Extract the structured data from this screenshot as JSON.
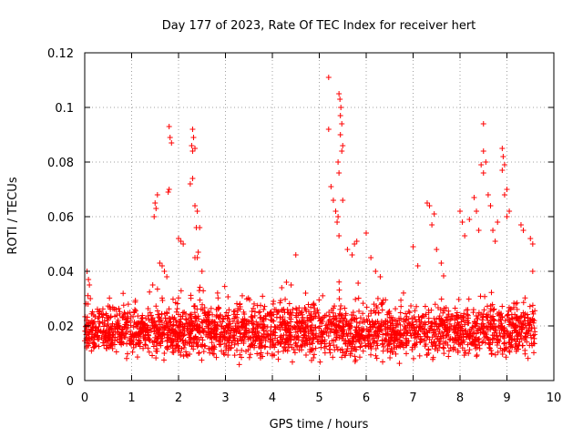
{
  "chart_data": {
    "type": "scatter",
    "title": "Day 177 of 2023, Rate Of TEC Index for receiver hert",
    "xlabel": "GPS time / hours",
    "ylabel": "ROTI / TECUs",
    "xlim": [
      0,
      10
    ],
    "ylim": [
      0,
      0.12
    ],
    "xticks": [
      "0",
      "1",
      "2",
      "3",
      "4",
      "5",
      "6",
      "7",
      "8",
      "9",
      "10"
    ],
    "yticks": [
      "0",
      "0.02",
      "0.04",
      "0.06",
      "0.08",
      "0.1",
      "0.12"
    ],
    "grid": true,
    "marker": "+",
    "color": "#ff0000",
    "series": [
      {
        "name": "ROTI",
        "x_range": [
          0,
          9.6
        ],
        "typical_range": [
          0.005,
          0.025
        ],
        "points": [
          [
            0.05,
            0.04
          ],
          [
            0.08,
            0.037
          ],
          [
            0.1,
            0.035
          ],
          [
            0.12,
            0.03
          ],
          [
            0.07,
            0.028
          ],
          [
            1.5,
            0.065
          ],
          [
            1.52,
            0.063
          ],
          [
            1.48,
            0.06
          ],
          [
            1.55,
            0.068
          ],
          [
            1.6,
            0.043
          ],
          [
            1.65,
            0.042
          ],
          [
            1.7,
            0.04
          ],
          [
            1.45,
            0.035
          ],
          [
            1.75,
            0.038
          ],
          [
            1.8,
            0.093
          ],
          [
            1.82,
            0.089
          ],
          [
            1.85,
            0.087
          ],
          [
            1.8,
            0.07
          ],
          [
            1.78,
            0.069
          ],
          [
            2.0,
            0.052
          ],
          [
            2.05,
            0.051
          ],
          [
            2.1,
            0.05
          ],
          [
            2.3,
            0.092
          ],
          [
            2.32,
            0.089
          ],
          [
            2.28,
            0.086
          ],
          [
            2.35,
            0.085
          ],
          [
            2.3,
            0.084
          ],
          [
            2.25,
            0.072
          ],
          [
            2.3,
            0.074
          ],
          [
            2.35,
            0.064
          ],
          [
            2.4,
            0.062
          ],
          [
            2.38,
            0.056
          ],
          [
            2.45,
            0.056
          ],
          [
            2.42,
            0.047
          ],
          [
            2.4,
            0.045
          ],
          [
            2.35,
            0.045
          ],
          [
            2.5,
            0.04
          ],
          [
            4.5,
            0.046
          ],
          [
            4.3,
            0.036
          ],
          [
            4.4,
            0.035
          ],
          [
            4.2,
            0.034
          ],
          [
            5.2,
            0.111
          ],
          [
            5.2,
            0.092
          ],
          [
            5.25,
            0.071
          ],
          [
            5.3,
            0.066
          ],
          [
            5.35,
            0.062
          ],
          [
            5.4,
            0.06
          ],
          [
            5.38,
            0.058
          ],
          [
            5.42,
            0.053
          ],
          [
            5.42,
            0.105
          ],
          [
            5.44,
            0.103
          ],
          [
            5.46,
            0.1
          ],
          [
            5.45,
            0.097
          ],
          [
            5.48,
            0.094
          ],
          [
            5.45,
            0.09
          ],
          [
            5.5,
            0.086
          ],
          [
            5.48,
            0.084
          ],
          [
            5.4,
            0.08
          ],
          [
            5.42,
            0.076
          ],
          [
            5.5,
            0.066
          ],
          [
            5.6,
            0.048
          ],
          [
            5.7,
            0.046
          ],
          [
            5.75,
            0.05
          ],
          [
            5.8,
            0.051
          ],
          [
            6.0,
            0.054
          ],
          [
            6.1,
            0.045
          ],
          [
            6.2,
            0.04
          ],
          [
            6.3,
            0.038
          ],
          [
            7.0,
            0.049
          ],
          [
            7.1,
            0.042
          ],
          [
            7.3,
            0.065
          ],
          [
            7.35,
            0.064
          ],
          [
            7.4,
            0.057
          ],
          [
            7.45,
            0.061
          ],
          [
            7.5,
            0.048
          ],
          [
            7.6,
            0.043
          ],
          [
            8.0,
            0.062
          ],
          [
            8.05,
            0.058
          ],
          [
            8.1,
            0.053
          ],
          [
            8.2,
            0.059
          ],
          [
            8.3,
            0.067
          ],
          [
            8.35,
            0.062
          ],
          [
            8.4,
            0.055
          ],
          [
            8.45,
            0.079
          ],
          [
            8.5,
            0.094
          ],
          [
            8.5,
            0.084
          ],
          [
            8.55,
            0.08
          ],
          [
            8.5,
            0.076
          ],
          [
            8.6,
            0.068
          ],
          [
            8.65,
            0.064
          ],
          [
            8.7,
            0.055
          ],
          [
            8.75,
            0.051
          ],
          [
            8.8,
            0.058
          ],
          [
            8.9,
            0.085
          ],
          [
            8.92,
            0.082
          ],
          [
            8.95,
            0.079
          ],
          [
            8.9,
            0.077
          ],
          [
            8.95,
            0.068
          ],
          [
            9.0,
            0.07
          ],
          [
            9.05,
            0.062
          ],
          [
            9.0,
            0.06
          ],
          [
            9.3,
            0.057
          ],
          [
            9.35,
            0.055
          ],
          [
            9.5,
            0.052
          ],
          [
            9.55,
            0.05
          ],
          [
            9.55,
            0.04
          ]
        ]
      }
    ]
  }
}
